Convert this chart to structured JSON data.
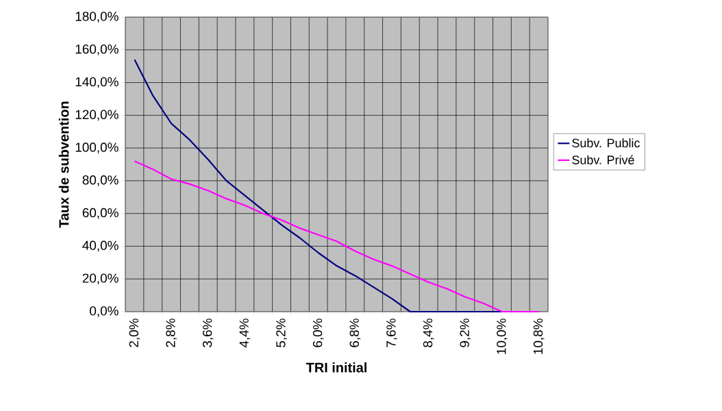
{
  "chart_data": {
    "type": "line",
    "xlabel": "TRI initial",
    "ylabel": "Taux de subvention",
    "categories": [
      "2,0%",
      null,
      "2,8%",
      null,
      "3,6%",
      null,
      "4,4%",
      null,
      "5,2%",
      null,
      "6,0%",
      null,
      "6,8%",
      null,
      "7,6%",
      null,
      "8,4%",
      null,
      "9,2%",
      null,
      "10,0%",
      null,
      "10,8%"
    ],
    "series": [
      {
        "name": "Subv. Public",
        "color": "#000080",
        "values": [
          154,
          132,
          115,
          105,
          93,
          80,
          71,
          62,
          53,
          45,
          36,
          28,
          22,
          15,
          8,
          0,
          0,
          0,
          0,
          0,
          0,
          0,
          0
        ]
      },
      {
        "name": "Subv. Privé",
        "color": "#ff00ff",
        "values": [
          92,
          87,
          81,
          78,
          74,
          69,
          65,
          60,
          56,
          51,
          47,
          43,
          37,
          32,
          28,
          23,
          18,
          14,
          9,
          5,
          0,
          0,
          0
        ]
      }
    ],
    "ylim": [
      0,
      180
    ],
    "yticks": [
      {
        "value": 0,
        "label": "0,0%"
      },
      {
        "value": 20,
        "label": "20,0%"
      },
      {
        "value": 40,
        "label": "40,0%"
      },
      {
        "value": 60,
        "label": "60,0%"
      },
      {
        "value": 80,
        "label": "80,0%"
      },
      {
        "value": 100,
        "label": "100,0%"
      },
      {
        "value": 120,
        "label": "120,0%"
      },
      {
        "value": 140,
        "label": "140,0%"
      },
      {
        "value": 160,
        "label": "160,0%"
      },
      {
        "value": 180,
        "label": "180,0%"
      }
    ],
    "grid": true,
    "legend": "right",
    "marker": "none",
    "line_style": "solid"
  }
}
